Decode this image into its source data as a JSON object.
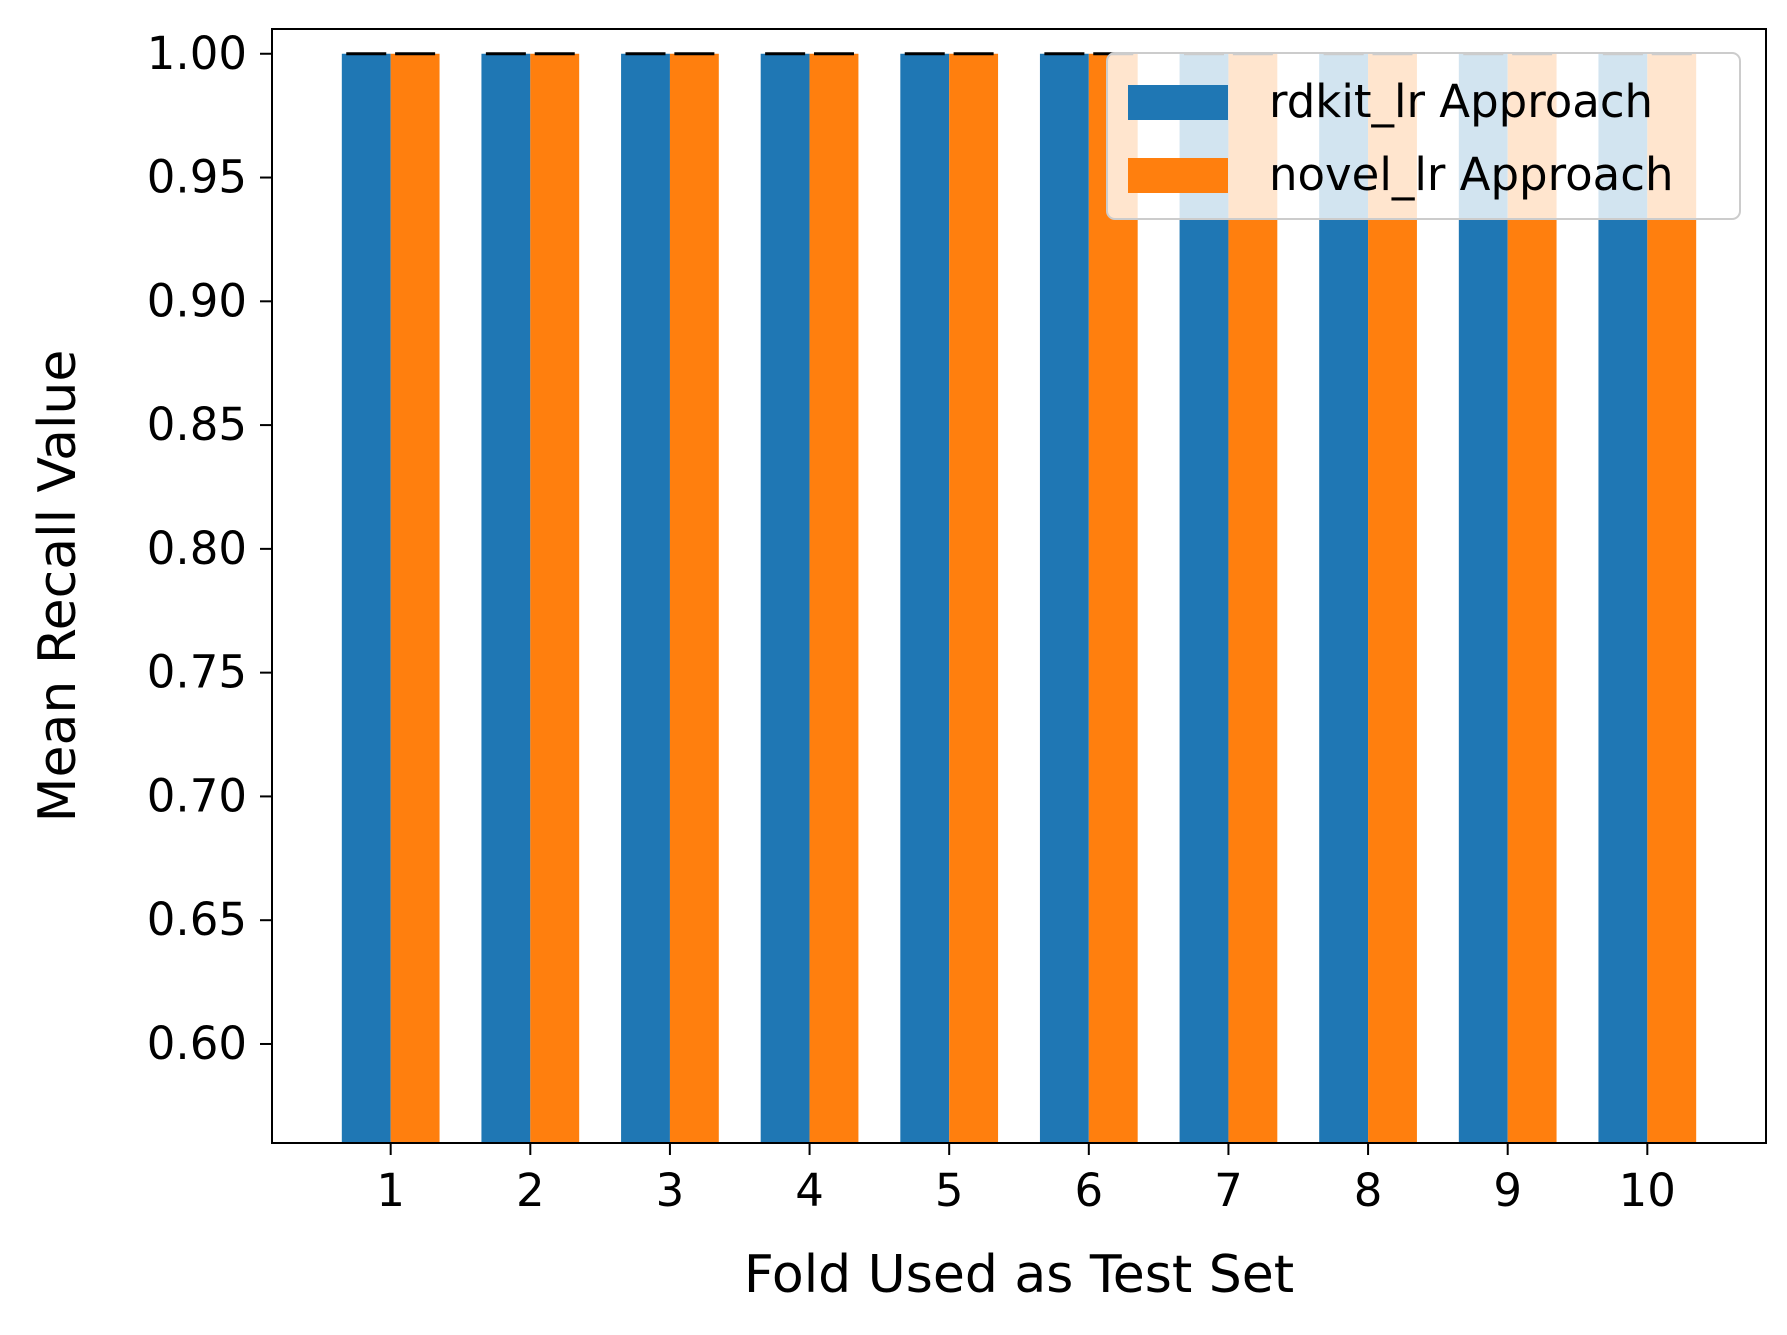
{
  "chart_data": {
    "type": "bar",
    "title": "",
    "xlabel": "Fold Used as Test Set",
    "ylabel": "Mean Recall Value",
    "categories": [
      "1",
      "2",
      "3",
      "4",
      "5",
      "6",
      "7",
      "8",
      "9",
      "10"
    ],
    "series": [
      {
        "name": "rdkit_lr Approach",
        "color": "#1f77b4",
        "values": [
          1.0,
          1.0,
          1.0,
          1.0,
          1.0,
          1.0,
          1.0,
          1.0,
          1.0,
          1.0
        ],
        "error": [
          0,
          0,
          0,
          0,
          0,
          0,
          0,
          0,
          0,
          0
        ]
      },
      {
        "name": "novel_lr Approach",
        "color": "#ff7f0e",
        "values": [
          1.0,
          1.0,
          1.0,
          1.0,
          1.0,
          1.0,
          1.0,
          1.0,
          1.0,
          1.0
        ],
        "error": [
          0,
          0,
          0,
          0,
          0,
          0,
          0,
          0,
          0,
          0
        ]
      }
    ],
    "ylim": [
      0.56,
      1.01
    ],
    "yticks": [
      "0.60",
      "0.65",
      "0.70",
      "0.75",
      "0.80",
      "0.85",
      "0.90",
      "0.95",
      "1.00"
    ],
    "grid": false,
    "legend_position": "top-right"
  }
}
